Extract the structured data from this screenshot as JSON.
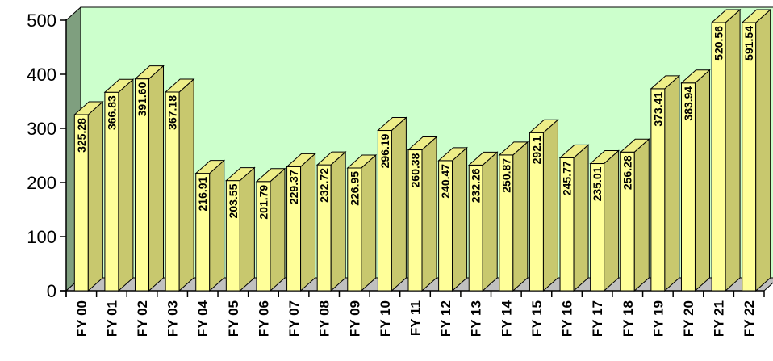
{
  "chart_data": {
    "type": "bar",
    "categories": [
      "FY 00",
      "FY 01",
      "FY 02",
      "FY 03",
      "FY 04",
      "FY 05",
      "FY 06",
      "FY 07",
      "FY 08",
      "FY 09",
      "FY 10",
      "FY 11",
      "FY 12",
      "FY 13",
      "FY 14",
      "FY 15",
      "FY 16",
      "FY 17",
      "FY 18",
      "FY 19",
      "FY 20",
      "FY 21",
      "FY 22"
    ],
    "values": [
      325.28,
      366.83,
      391.6,
      367.18,
      216.91,
      203.55,
      201.79,
      229.37,
      232.72,
      226.95,
      296.19,
      260.38,
      240.47,
      232.26,
      250.87,
      292.1,
      245.77,
      235.01,
      256.28,
      373.41,
      383.94,
      520.56,
      591.54
    ],
    "data_labels": [
      "325.28",
      "366.83",
      "391.60",
      "367.18",
      "216.91",
      "203.55",
      "201.79",
      "229.37",
      "232.72",
      "226.95",
      "296.19",
      "260.38",
      "240.47",
      "232.26",
      "250.87",
      "292.1",
      "245.77",
      "235.01",
      "256.28",
      "373.41",
      "383.94",
      "520.56",
      "591.54"
    ],
    "y_ticks": [
      "0",
      "100",
      "200",
      "300",
      "400",
      "500"
    ],
    "ylim": [
      0,
      500
    ],
    "title": "",
    "xlabel": "",
    "ylabel": "",
    "grid": false,
    "legend": "none",
    "colors": {
      "bar_front": "#ffff99",
      "bar_side": "#c8c86e",
      "bar_top": "#eeee88",
      "back_wall": "#ccffcc",
      "side_wall": "#7f9f7f",
      "floor": "#c0c0c0"
    }
  }
}
